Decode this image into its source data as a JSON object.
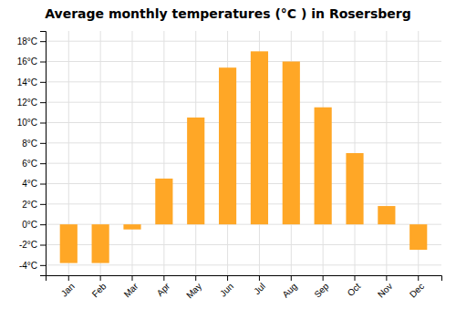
{
  "chart_data": {
    "type": "bar",
    "title": "Average monthly temperatures (°C ) in Rosersberg",
    "categories": [
      "Jan",
      "Feb",
      "Mar",
      "Apr",
      "May",
      "Jun",
      "Jul",
      "Aug",
      "Sep",
      "Oct",
      "Nov",
      "Dec"
    ],
    "values": [
      -3.8,
      -3.8,
      -0.5,
      4.5,
      10.5,
      15.4,
      17.0,
      16.0,
      11.5,
      7.0,
      1.8,
      -2.5
    ],
    "color": "#FFA726",
    "ylim": [
      -5,
      19
    ],
    "yticks": [
      {
        "value": -4,
        "label": "-4°C"
      },
      {
        "value": -2,
        "label": "-2°C"
      },
      {
        "value": 0,
        "label": "0°C"
      },
      {
        "value": 2,
        "label": "2°C"
      },
      {
        "value": 4,
        "label": "4°C"
      },
      {
        "value": 6,
        "label": "6°C"
      },
      {
        "value": 8,
        "label": "8°C"
      },
      {
        "value": 10,
        "label": "10°C"
      },
      {
        "value": 12,
        "label": "12°C"
      },
      {
        "value": 14,
        "label": "14°C"
      },
      {
        "value": 16,
        "label": "16°C"
      },
      {
        "value": 18,
        "label": "18°C"
      }
    ],
    "grid": true
  }
}
